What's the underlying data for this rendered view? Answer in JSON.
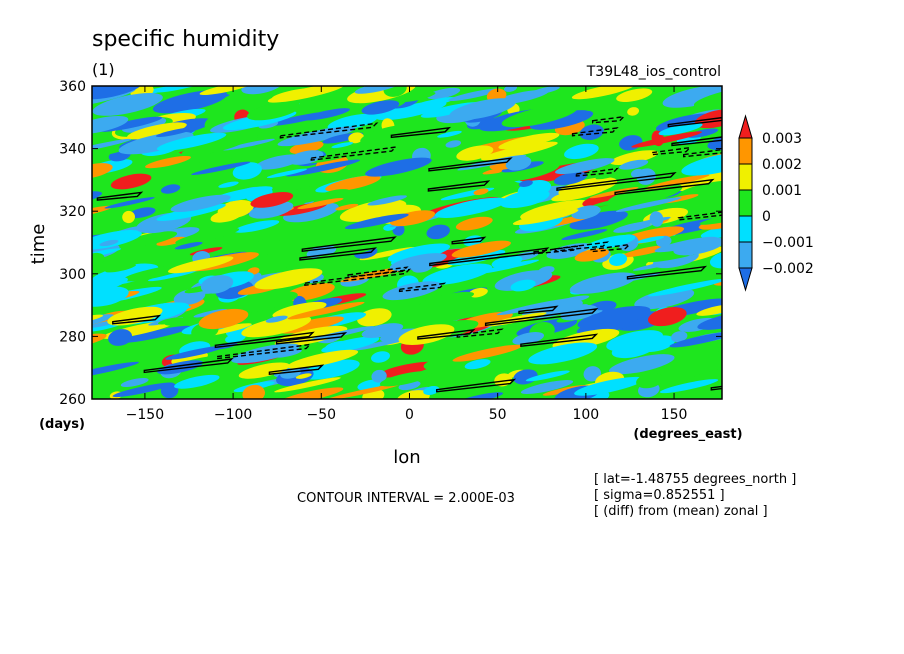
{
  "chart_data": {
    "type": "heatmap",
    "title": "specific humidity",
    "subtitle": "(1)",
    "experiment": "T39L48_ios_control",
    "xlabel": "lon",
    "x_units": "(degrees_east)",
    "ylabel": "time",
    "y_units": "(days)",
    "xlim": [
      -180,
      177.1875
    ],
    "ylim": [
      260,
      360
    ],
    "x_ticks": [
      -150,
      -100,
      -50,
      0,
      50,
      100,
      150
    ],
    "y_ticks": [
      260,
      280,
      300,
      320,
      340,
      360
    ],
    "colorbar": {
      "labels": [
        "0.003",
        "0.002",
        "0.001",
        "0",
        "-0.001",
        "-0.002"
      ],
      "levels": [
        -0.002,
        -0.001,
        0,
        0.001,
        0.002,
        0.003
      ],
      "colors": [
        "#1e6ee6",
        "#3caaf0",
        "#00e0ff",
        "#1ee61e",
        "#f0f000",
        "#ff9600",
        "#f01e1e"
      ]
    },
    "contour_interval": "CONTOUR INTERVAL = 2.000E-03",
    "info": [
      "[ lat=-1.48755 degrees_north ]",
      "[ sigma=0.852551 ]",
      "[ (diff) from (mean) zonal ]"
    ]
  }
}
